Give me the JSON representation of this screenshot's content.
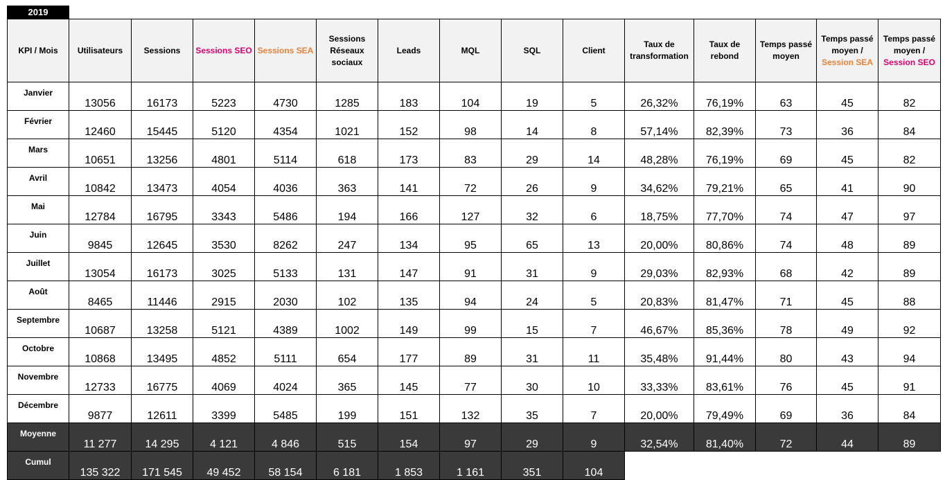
{
  "year": "2019",
  "headers": [
    {
      "lines": [
        "KPI / Mois"
      ]
    },
    {
      "lines": [
        "Utilisateurs"
      ]
    },
    {
      "lines": [
        "Sessions"
      ]
    },
    {
      "lines": [
        "Sessions SEO"
      ],
      "accent": "seo"
    },
    {
      "lines": [
        "Sessions SEA"
      ],
      "accent": "sea"
    },
    {
      "lines": [
        "Sessions",
        "Réseaux",
        "sociaux"
      ]
    },
    {
      "lines": [
        "Leads"
      ]
    },
    {
      "lines": [
        "MQL"
      ]
    },
    {
      "lines": [
        "SQL"
      ]
    },
    {
      "lines": [
        "Client"
      ]
    },
    {
      "lines": [
        "Taux de",
        "transformation"
      ]
    },
    {
      "lines": [
        "Taux de",
        "rebond"
      ]
    },
    {
      "lines": [
        "Temps passé",
        "moyen"
      ]
    },
    {
      "lines": [
        "Temps passé",
        "moyen /"
      ],
      "accent_line": "Session SEA",
      "accent": "sea"
    },
    {
      "lines": [
        "Temps passé",
        "moyen /"
      ],
      "accent_line": "Session SEO",
      "accent": "seo"
    }
  ],
  "rows": [
    [
      "Janvier",
      "13056",
      "16173",
      "5223",
      "4730",
      "1285",
      "183",
      "104",
      "19",
      "5",
      "26,32%",
      "76,19%",
      "63",
      "45",
      "82"
    ],
    [
      "Février",
      "12460",
      "15445",
      "5120",
      "4354",
      "1021",
      "152",
      "98",
      "14",
      "8",
      "57,14%",
      "82,39%",
      "73",
      "36",
      "84"
    ],
    [
      "Mars",
      "10651",
      "13256",
      "4801",
      "5114",
      "618",
      "173",
      "83",
      "29",
      "14",
      "48,28%",
      "76,19%",
      "69",
      "45",
      "82"
    ],
    [
      "Avril",
      "10842",
      "13473",
      "4054",
      "4036",
      "363",
      "141",
      "72",
      "26",
      "9",
      "34,62%",
      "79,21%",
      "65",
      "41",
      "90"
    ],
    [
      "Mai",
      "12784",
      "16795",
      "3343",
      "5486",
      "194",
      "166",
      "127",
      "32",
      "6",
      "18,75%",
      "77,70%",
      "74",
      "47",
      "97"
    ],
    [
      "Juin",
      "9845",
      "12645",
      "3530",
      "8262",
      "247",
      "134",
      "95",
      "65",
      "13",
      "20,00%",
      "80,86%",
      "74",
      "48",
      "89"
    ],
    [
      "Juillet",
      "13054",
      "16173",
      "3025",
      "5133",
      "131",
      "147",
      "91",
      "31",
      "9",
      "29,03%",
      "82,93%",
      "68",
      "42",
      "89"
    ],
    [
      "Août",
      "8465",
      "11446",
      "2915",
      "2030",
      "102",
      "135",
      "94",
      "24",
      "5",
      "20,83%",
      "81,47%",
      "71",
      "45",
      "88"
    ],
    [
      "Septembre",
      "10687",
      "13258",
      "5121",
      "4389",
      "1002",
      "149",
      "99",
      "15",
      "7",
      "46,67%",
      "85,36%",
      "78",
      "49",
      "92"
    ],
    [
      "Octobre",
      "10868",
      "13495",
      "4852",
      "5111",
      "654",
      "177",
      "89",
      "31",
      "11",
      "35,48%",
      "91,44%",
      "80",
      "43",
      "94"
    ],
    [
      "Novembre",
      "12733",
      "16775",
      "4069",
      "4024",
      "365",
      "145",
      "77",
      "30",
      "10",
      "33,33%",
      "83,61%",
      "76",
      "45",
      "91"
    ],
    [
      "Décembre",
      "9877",
      "12611",
      "3399",
      "5485",
      "199",
      "151",
      "132",
      "35",
      "7",
      "20,00%",
      "79,49%",
      "69",
      "36",
      "84"
    ]
  ],
  "moyenne": [
    "Moyenne",
    "11 277",
    "14 295",
    "4 121",
    "4 846",
    "515",
    "154",
    "97",
    "29",
    "9",
    "32,54%",
    "81,40%",
    "72",
    "44",
    "89"
  ],
  "cumul": [
    "Cumul",
    "135 322",
    "171 545",
    "49 452",
    "58 154",
    "6 181",
    "1 853",
    "1 161",
    "351",
    "104"
  ]
}
